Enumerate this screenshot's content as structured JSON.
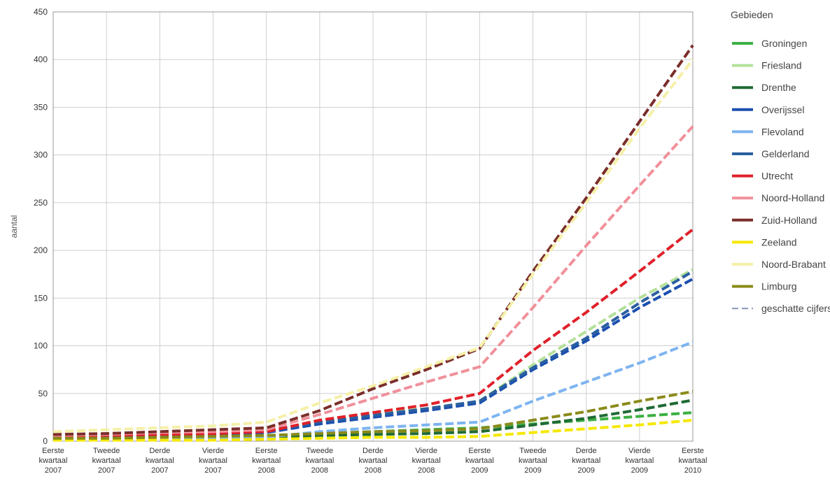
{
  "chart_data": {
    "type": "line",
    "title": "",
    "xlabel": "",
    "ylabel": "aantal",
    "ylim": [
      0,
      450
    ],
    "yticks": [
      0,
      50,
      100,
      150,
      200,
      250,
      300,
      350,
      400,
      450
    ],
    "grid": true,
    "legend_position": "right",
    "legend_title": "Gebieden",
    "categories": [
      [
        "Eerste",
        "kwartaal",
        "2007"
      ],
      [
        "Tweede",
        "kwartaal",
        "2007"
      ],
      [
        "Derde",
        "kwartaal",
        "2007"
      ],
      [
        "Vierde",
        "kwartaal",
        "2007"
      ],
      [
        "Eerste",
        "kwartaal",
        "2008"
      ],
      [
        "Tweede",
        "kwartaal",
        "2008"
      ],
      [
        "Derde",
        "kwartaal",
        "2008"
      ],
      [
        "Vierde",
        "kwartaal",
        "2008"
      ],
      [
        "Eerste",
        "kwartaal",
        "2009"
      ],
      [
        "Tweede",
        "kwartaal",
        "2009"
      ],
      [
        "Derde",
        "kwartaal",
        "2009"
      ],
      [
        "Vierde",
        "kwartaal",
        "2009"
      ],
      [
        "Eerste",
        "kwartaal",
        "2010"
      ]
    ],
    "estimated_label": "geschatte cijfers",
    "estimated_color": "#8a93b8",
    "series": [
      {
        "name": "Groningen",
        "color": "#3cb043",
        "values": [
          3,
          3,
          4,
          4,
          5,
          8,
          10,
          12,
          14,
          18,
          22,
          26,
          30
        ]
      },
      {
        "name": "Friesland",
        "color": "#b4e09a",
        "values": [
          5,
          6,
          7,
          8,
          10,
          22,
          30,
          34,
          42,
          80,
          115,
          150,
          180
        ]
      },
      {
        "name": "Drenthe",
        "color": "#1f6b35",
        "values": [
          2,
          2,
          3,
          3,
          4,
          6,
          7,
          8,
          10,
          17,
          24,
          33,
          43
        ]
      },
      {
        "name": "Overijssel",
        "color": "#1a4fb0",
        "values": [
          4,
          5,
          6,
          7,
          9,
          18,
          25,
          32,
          40,
          75,
          105,
          140,
          170
        ]
      },
      {
        "name": "Flevoland",
        "color": "#7db4f0",
        "values": [
          2,
          2,
          3,
          3,
          4,
          10,
          14,
          17,
          20,
          42,
          62,
          82,
          104
        ]
      },
      {
        "name": "Gelderland",
        "color": "#2a5fa0",
        "values": [
          6,
          7,
          8,
          9,
          11,
          20,
          27,
          34,
          42,
          77,
          108,
          145,
          178
        ]
      },
      {
        "name": "Utrecht",
        "color": "#e0202a",
        "values": [
          5,
          6,
          7,
          8,
          10,
          22,
          30,
          38,
          50,
          95,
          135,
          178,
          222
        ]
      },
      {
        "name": "Noord-Holland",
        "color": "#f0909a",
        "values": [
          6,
          7,
          9,
          10,
          12,
          28,
          45,
          62,
          78,
          140,
          205,
          268,
          330
        ]
      },
      {
        "name": "Zuid-Holland",
        "color": "#7a2e2a",
        "values": [
          7,
          8,
          10,
          12,
          14,
          32,
          55,
          75,
          97,
          178,
          255,
          335,
          415
        ]
      },
      {
        "name": "Zeeland",
        "color": "#f5e800",
        "values": [
          1,
          1,
          1,
          1,
          2,
          3,
          4,
          4,
          5,
          9,
          13,
          17,
          22
        ]
      },
      {
        "name": "Noord-Brabant",
        "color": "#f5f0a8",
        "values": [
          10,
          12,
          14,
          16,
          20,
          40,
          58,
          78,
          98,
          175,
          250,
          328,
          400
        ]
      },
      {
        "name": "Limburg",
        "color": "#8a8a1a",
        "values": [
          3,
          3,
          4,
          5,
          6,
          8,
          10,
          11,
          13,
          22,
          31,
          42,
          52
        ]
      }
    ]
  }
}
